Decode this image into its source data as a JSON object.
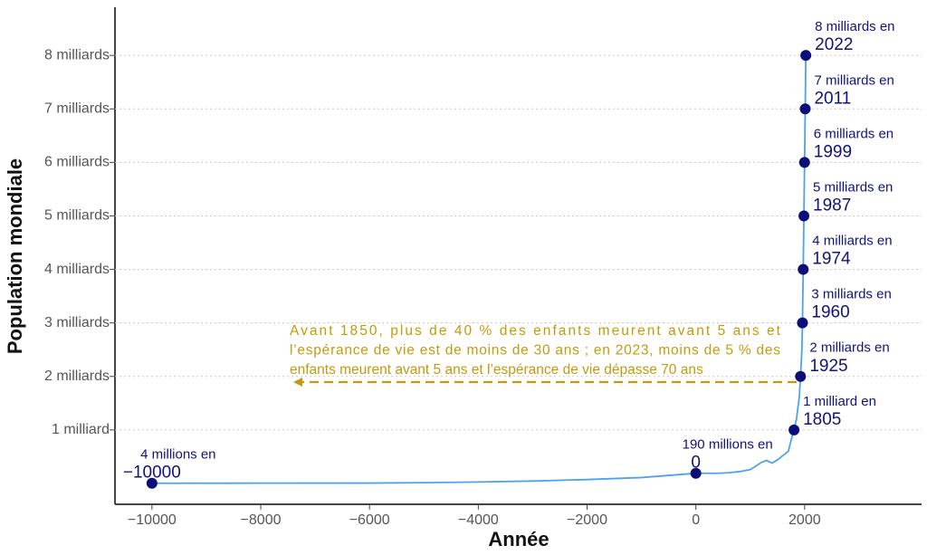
{
  "chart_data": {
    "type": "line",
    "x_label": "Année",
    "y_label": "Population mondiale",
    "xlim": [
      -10680,
      4150
    ],
    "ylim": [
      -0.39,
      8.9
    ],
    "xticks": [
      {
        "value": -10000,
        "label": "−10000"
      },
      {
        "value": -8000,
        "label": "−8000"
      },
      {
        "value": -6000,
        "label": "−6000"
      },
      {
        "value": -4000,
        "label": "−4000"
      },
      {
        "value": -2000,
        "label": "−2000"
      },
      0,
      2000
    ],
    "yticks": [
      {
        "value": 1,
        "label": "1 milliard"
      },
      {
        "value": 2,
        "label": "2 milliards"
      },
      {
        "value": 3,
        "label": "3 milliards"
      },
      {
        "value": 4,
        "label": "4 milliards"
      },
      {
        "value": 5,
        "label": "5 milliards"
      },
      {
        "value": 6,
        "label": "6 milliards"
      },
      {
        "value": 7,
        "label": "7 milliards"
      },
      {
        "value": 8,
        "label": "8 milliards"
      }
    ],
    "grid": true,
    "series": [
      {
        "name": "Population mondiale",
        "color": "#4ea3ea",
        "x": [
          -10000,
          -8000,
          -6000,
          -5000,
          -4000,
          -3000,
          -2000,
          -1000,
          0,
          200,
          400,
          600,
          800,
          1000,
          1100,
          1200,
          1300,
          1400,
          1500,
          1600,
          1700,
          1800,
          1850,
          1900,
          1925,
          1950,
          1960,
          1974,
          1987,
          1999,
          2011,
          2022,
          2023
        ],
        "values": [
          0.004,
          0.005,
          0.007,
          0.014,
          0.027,
          0.045,
          0.072,
          0.11,
          0.19,
          0.19,
          0.19,
          0.2,
          0.22,
          0.26,
          0.32,
          0.39,
          0.43,
          0.38,
          0.44,
          0.52,
          0.6,
          1.0,
          1.2,
          1.6,
          2.0,
          2.5,
          3.0,
          4.0,
          5.0,
          6.0,
          7.0,
          8.0,
          8.05
        ]
      }
    ],
    "annotations": [
      {
        "text": "4 millions en",
        "year": {
          "value": -10000,
          "label": "−10000"
        },
        "population": 0.004
      },
      {
        "text": "190 millions en",
        "year": 0,
        "population": 0.19
      },
      {
        "text": "1 milliard en",
        "year": 1805,
        "population": 1
      },
      {
        "text": "2 milliards en",
        "year": 1925,
        "population": 2
      },
      {
        "text": "3 milliards en",
        "year": 1960,
        "population": 3
      },
      {
        "text": "4 milliards en",
        "year": 1974,
        "population": 4
      },
      {
        "text": "5 milliards en",
        "year": 1987,
        "population": 5
      },
      {
        "text": "6 milliards en",
        "year": 1999,
        "population": 6
      },
      {
        "text": "7 milliards en",
        "year": 2011,
        "population": 7
      },
      {
        "text": "8 milliards en",
        "year": 2022,
        "population": 8
      }
    ],
    "note": [
      "Avant 1850, plus de 40 % des enfants meurent avant 5 ans et",
      "l’espérance de vie est de moins de 30 ans ; en 2023, moins de 5 % des",
      "enfants meurent avant 5 ans et l’espérance de vie dépasse 70 ans"
    ]
  }
}
